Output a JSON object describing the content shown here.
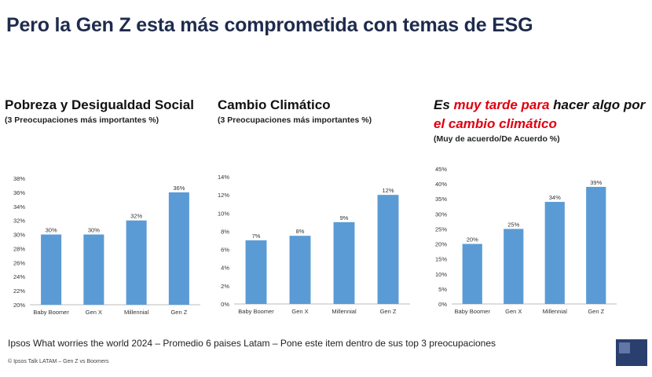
{
  "title": "Pero la Gen Z esta más comprometida con temas de ESG",
  "panels": [
    {
      "title": "Pobreza y Desigualdad Social",
      "subtitle": "(3 Preocupaciones más importantes %)"
    },
    {
      "title": "Cambio Climático",
      "subtitle": "(3 Preocupaciones más importantes %)"
    },
    {
      "title_parts": [
        "Es",
        "muy tarde para",
        "hacer algo por",
        "el cambio climático"
      ],
      "subtitle": "(Muy de acuerdo/De Acuerdo %)"
    }
  ],
  "chart_data": [
    {
      "type": "bar",
      "categories": [
        "Baby Boomer",
        "Gen X",
        "Millennial",
        "Gen Z"
      ],
      "values": [
        30,
        30,
        32,
        36
      ],
      "data_labels": [
        "30%",
        "30%",
        "32%",
        "36%"
      ],
      "ylim": [
        20,
        38
      ],
      "yticks": [
        "20%",
        "22%",
        "24%",
        "26%",
        "28%",
        "30%",
        "32%",
        "34%",
        "36%",
        "38%"
      ],
      "title": "Pobreza y Desigualdad Social"
    },
    {
      "type": "bar",
      "categories": [
        "Baby Boomer",
        "Gen X",
        "Millennial",
        "Gen Z"
      ],
      "values": [
        7,
        7.5,
        9,
        12
      ],
      "data_labels": [
        "7%",
        "8%",
        "9%",
        "12%"
      ],
      "ylim": [
        0,
        14
      ],
      "yticks": [
        "0%",
        "2%",
        "4%",
        "6%",
        "8%",
        "10%",
        "12%",
        "14%"
      ],
      "title": "Cambio Climático"
    },
    {
      "type": "bar",
      "categories": [
        "Baby Boomer",
        "Gen X",
        "Millennial",
        "Gen Z"
      ],
      "values": [
        20,
        25,
        34,
        39
      ],
      "data_labels": [
        "20%",
        "25%",
        "34%",
        "39%"
      ],
      "ylim": [
        0,
        45
      ],
      "yticks": [
        "0%",
        "5%",
        "10%",
        "15%",
        "20%",
        "25%",
        "30%",
        "35%",
        "40%",
        "45%"
      ],
      "title": "Es muy tarde para hacer algo por el cambio climático"
    }
  ],
  "colors": {
    "bar": "#5b9bd5",
    "title": "#1f2b4d",
    "accent": "#e0000f"
  },
  "footer": "Ipsos What worries the world 2024 – Promedio 6 paises Latam – Pone este item dentro de sus  top 3 preocupaciones",
  "small_note": "© Ipsos Talk LATAM – Gen Z vs Boomers"
}
